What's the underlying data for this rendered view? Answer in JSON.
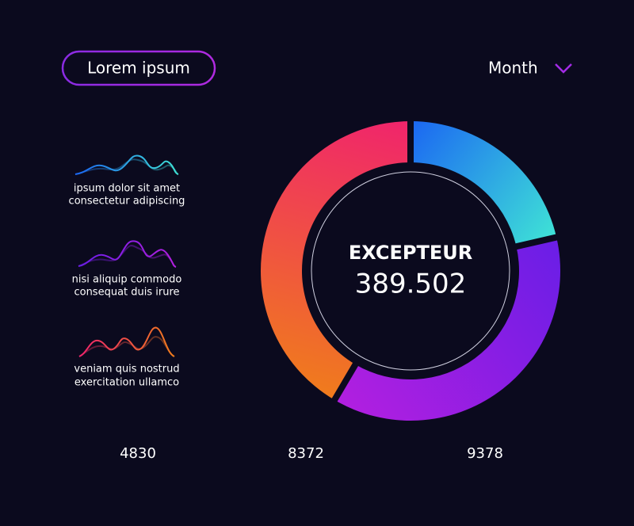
{
  "header": {
    "button": "Lorem ipsum",
    "dropdown": "Month"
  },
  "items": [
    {
      "lines": [
        "ipsum dolor sit amet",
        "consectetur adipiscing"
      ]
    },
    {
      "lines": [
        "nisi aliquip commodo",
        "consequat duis irure"
      ]
    },
    {
      "lines": [
        "veniam quis nostrud",
        "exercitation ullamco"
      ]
    }
  ],
  "chart_data": {
    "type": "donut",
    "title": "EXCEPTEUR",
    "subtitle": "389.502",
    "values": [
      4830,
      8372,
      9378
    ],
    "colors": [
      [
        "#1b66f2",
        "#3fe3d6"
      ],
      [
        "#6a1ee6",
        "#b21fe0"
      ],
      [
        "#f07c1c",
        "#f0246c"
      ]
    ]
  }
}
